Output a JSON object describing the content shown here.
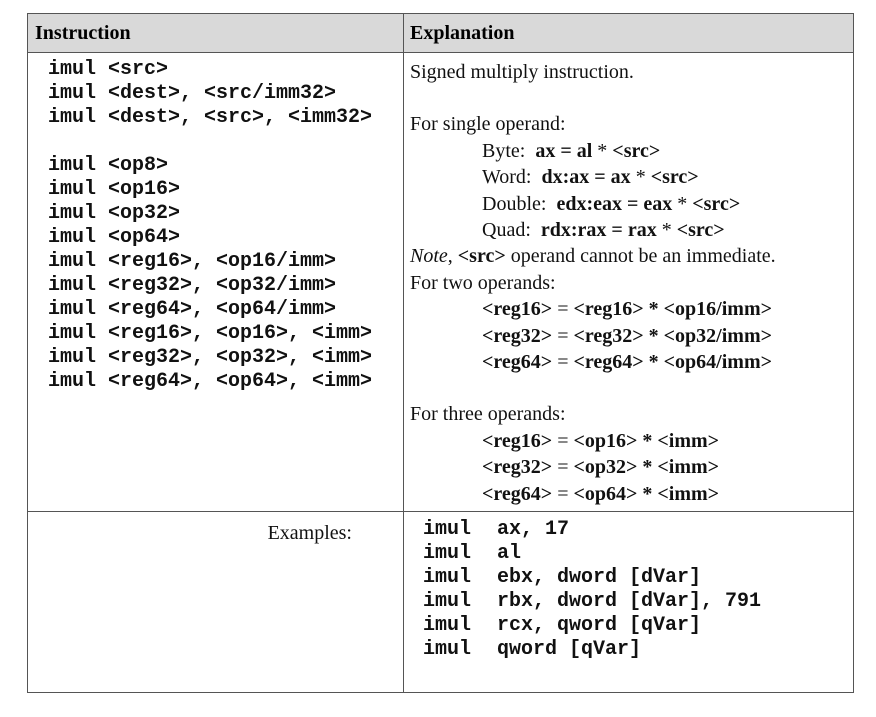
{
  "header": {
    "instruction": "Instruction",
    "explanation": "Explanation"
  },
  "forms": [
    [
      "imul <src>",
      "imul <dest>, <src/imm32>",
      "imul <dest>, <src>, <imm32>"
    ],
    [
      "imul <op8>",
      "imul <op16>",
      "imul <op32>",
      "imul <op64>",
      "imul <reg16>, <op16/imm>",
      "imul <reg32>, <op32/imm>",
      "imul <reg64>, <op64/imm>",
      "imul <reg16>, <op16>, <imm>",
      "imul <reg32>, <op32>, <imm>",
      "imul <reg64>, <op64>, <imm>"
    ]
  ],
  "explanation": [
    [
      {
        "segments": [
          {
            "text": "Signed multiply instruction."
          }
        ]
      }
    ],
    [
      {
        "segments": [
          {
            "text": "For single operand:"
          }
        ]
      },
      {
        "indent": true,
        "segments": [
          {
            "text": "Byte:  "
          },
          {
            "text": "ax = al",
            "bold": true
          },
          {
            "text": " * "
          },
          {
            "text": "<src>",
            "bold": true
          }
        ]
      },
      {
        "indent": true,
        "segments": [
          {
            "text": "Word:  "
          },
          {
            "text": "dx:ax = ax",
            "bold": true
          },
          {
            "text": " * "
          },
          {
            "text": "<src>",
            "bold": true
          }
        ]
      },
      {
        "indent": true,
        "segments": [
          {
            "text": "Double:  "
          },
          {
            "text": "edx:eax = eax",
            "bold": true
          },
          {
            "text": " * "
          },
          {
            "text": "<src>",
            "bold": true
          }
        ]
      },
      {
        "indent": true,
        "segments": [
          {
            "text": "Quad:  "
          },
          {
            "text": "rdx:rax = rax",
            "bold": true
          },
          {
            "text": " * "
          },
          {
            "text": "<src>",
            "bold": true
          }
        ]
      },
      {
        "segments": [
          {
            "text": "Note",
            "italic": true
          },
          {
            "text": ", "
          },
          {
            "text": "<src>",
            "bold": true
          },
          {
            "text": " operand cannot be an immediate."
          }
        ]
      },
      {
        "segments": [
          {
            "text": "For two operands:"
          }
        ]
      },
      {
        "indent": true,
        "segments": [
          {
            "text": "<reg16>",
            "bold": true
          },
          {
            "text": " = "
          },
          {
            "text": "<reg16> * <op16/imm>",
            "bold": true
          }
        ]
      },
      {
        "indent": true,
        "segments": [
          {
            "text": "<reg32>",
            "bold": true
          },
          {
            "text": " = "
          },
          {
            "text": "<reg32> * <op32/imm>",
            "bold": true
          }
        ]
      },
      {
        "indent": true,
        "segments": [
          {
            "text": "<reg64>",
            "bold": true
          },
          {
            "text": " = "
          },
          {
            "text": "<reg64> * <op64/imm>",
            "bold": true
          }
        ]
      }
    ],
    [
      {
        "segments": [
          {
            "text": "For three operands:"
          }
        ]
      },
      {
        "indent": true,
        "segments": [
          {
            "text": "<reg16>",
            "bold": true
          },
          {
            "text": " = "
          },
          {
            "text": "<op16> * <imm>",
            "bold": true
          }
        ]
      },
      {
        "indent": true,
        "segments": [
          {
            "text": "<reg32>",
            "bold": true
          },
          {
            "text": " = "
          },
          {
            "text": "<op32> * <imm>",
            "bold": true
          }
        ]
      },
      {
        "indent": true,
        "segments": [
          {
            "text": "<reg64>",
            "bold": true
          },
          {
            "text": " = "
          },
          {
            "text": "<op64> * <imm>",
            "bold": true
          }
        ]
      }
    ]
  ],
  "examples": {
    "label": "Examples:",
    "lines": [
      [
        "imul",
        "ax, 17"
      ],
      [
        "imul",
        "al"
      ],
      [
        "imul",
        "ebx, dword [dVar]"
      ],
      [
        "imul",
        "rbx, dword [dVar], 791"
      ],
      [
        "imul",
        "rcx, qword [qVar]"
      ],
      [
        "imul",
        "qword [qVar]"
      ]
    ]
  }
}
